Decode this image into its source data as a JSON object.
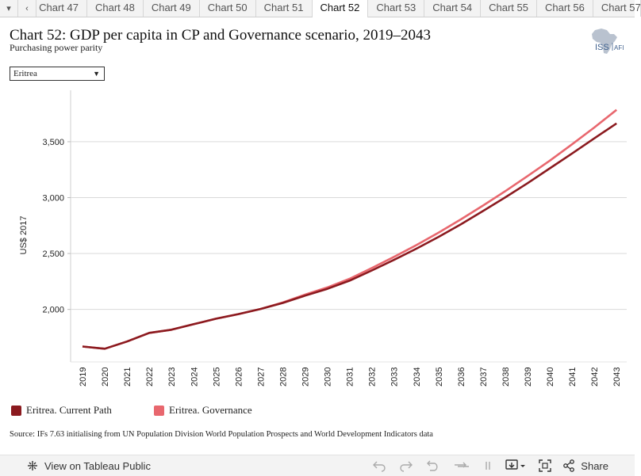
{
  "tabs": [
    {
      "label": "Chart 47",
      "active": false
    },
    {
      "label": "Chart 48",
      "active": false
    },
    {
      "label": "Chart 49",
      "active": false
    },
    {
      "label": "Chart 50",
      "active": false
    },
    {
      "label": "Chart 51",
      "active": false
    },
    {
      "label": "Chart 52",
      "active": true
    },
    {
      "label": "Chart 53",
      "active": false
    },
    {
      "label": "Chart 54",
      "active": false
    },
    {
      "label": "Chart 55",
      "active": false
    },
    {
      "label": "Chart 56",
      "active": false
    },
    {
      "label": "Chart 57",
      "active": false
    }
  ],
  "logo": {
    "text1": "ISS",
    "text2": "AFI"
  },
  "filter": {
    "selected": "Eritrea"
  },
  "colors": {
    "current_path": "#8b1a1f",
    "governance": "#e8676e",
    "grid": "#d9d9d9"
  },
  "chart_data": {
    "type": "line",
    "title": "Chart 52: GDP per capita in CP and Governance scenario, 2019–2043",
    "subtitle": "Purchasing power parity",
    "xlabel": "",
    "ylabel": "US$ 2017",
    "x": [
      "2019",
      "2020",
      "2021",
      "2022",
      "2023",
      "2024",
      "2025",
      "2026",
      "2027",
      "2028",
      "2029",
      "2030",
      "2031",
      "2032",
      "2033",
      "2034",
      "2035",
      "2036",
      "2037",
      "2038",
      "2039",
      "2040",
      "2041",
      "2042",
      "2043"
    ],
    "ylim": [
      1530,
      3960
    ],
    "yticks": [
      2000,
      2500,
      3000,
      3500
    ],
    "ytick_labels": [
      "2,000",
      "2,500",
      "3,000",
      "3,500"
    ],
    "grid": true,
    "legend_position": "bottom-left",
    "series": [
      {
        "name": "Eritrea. Current Path",
        "values": [
          1668,
          1648,
          1713,
          1790,
          1818,
          1868,
          1917,
          1958,
          2004,
          2058,
          2123,
          2184,
          2257,
          2348,
          2443,
          2543,
          2649,
          2761,
          2880,
          3003,
          3129,
          3262,
          3395,
          3530,
          3664
        ]
      },
      {
        "name": "Eritrea. Governance",
        "values": [
          1668,
          1648,
          1713,
          1790,
          1818,
          1868,
          1917,
          1958,
          2004,
          2062,
          2132,
          2197,
          2274,
          2370,
          2470,
          2575,
          2687,
          2805,
          2929,
          3058,
          3193,
          3331,
          3477,
          3627,
          3785
        ]
      }
    ]
  },
  "source": "Source: IFs 7.63 initialising from UN Population Division World Population Prospects and World Development Indicators data",
  "footer": {
    "view_label": "View on Tableau Public",
    "share_label": "Share"
  }
}
